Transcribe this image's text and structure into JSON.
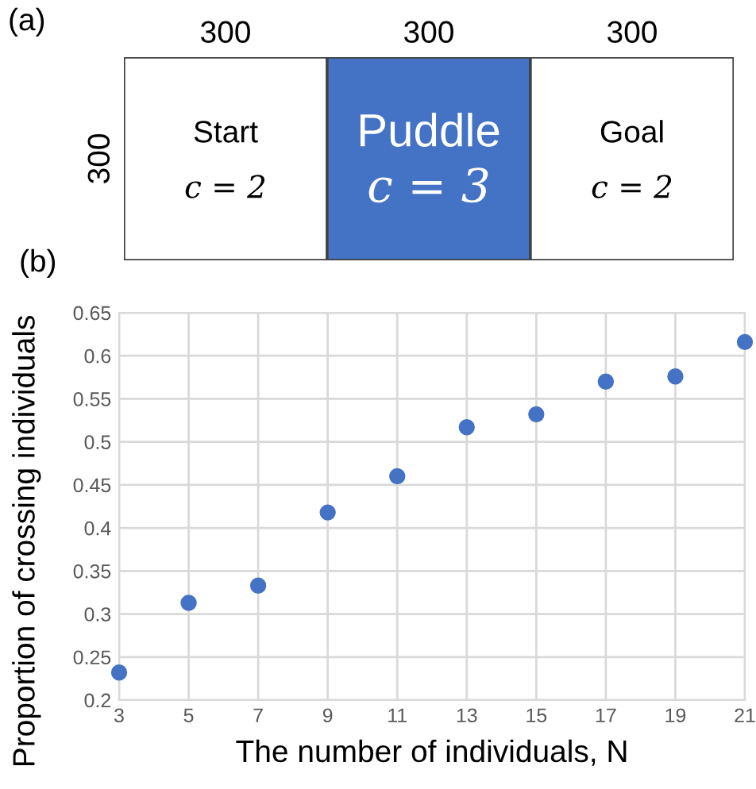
{
  "chart_data": [
    {
      "type": "other",
      "title": "(a)",
      "categories": [
        "Start",
        "Puddle",
        "Goal"
      ],
      "colors": [
        "#ffffff",
        "#4472c4",
        "#ffffff"
      ],
      "cell_labels": [
        "c = 2",
        "c = 3",
        "c = 2"
      ],
      "annotations": [
        "300",
        "300",
        "300",
        "300"
      ]
    },
    {
      "type": "scatter",
      "title": "(b)",
      "xlabel": "The number of individuals, N",
      "ylabel": "Proportion of crossing individuals",
      "x": [
        3,
        5,
        7,
        9,
        11,
        13,
        15,
        17,
        19,
        21
      ],
      "series": [
        {
          "color": "#4472c4",
          "values": [
            0.232,
            0.313,
            0.333,
            0.418,
            0.46,
            0.517,
            0.532,
            0.57,
            0.576,
            0.616
          ]
        }
      ],
      "xlim": [
        3,
        21
      ],
      "xticks": [
        3,
        5,
        7,
        9,
        11,
        13,
        15,
        17,
        19,
        21
      ],
      "ylim": [
        0.2,
        0.65
      ],
      "yticks": [
        0.2,
        0.25,
        0.3,
        0.35,
        0.4,
        0.45,
        0.5,
        0.55,
        0.6,
        0.65
      ],
      "grid": true,
      "marker": "circle",
      "legend": false
    }
  ]
}
